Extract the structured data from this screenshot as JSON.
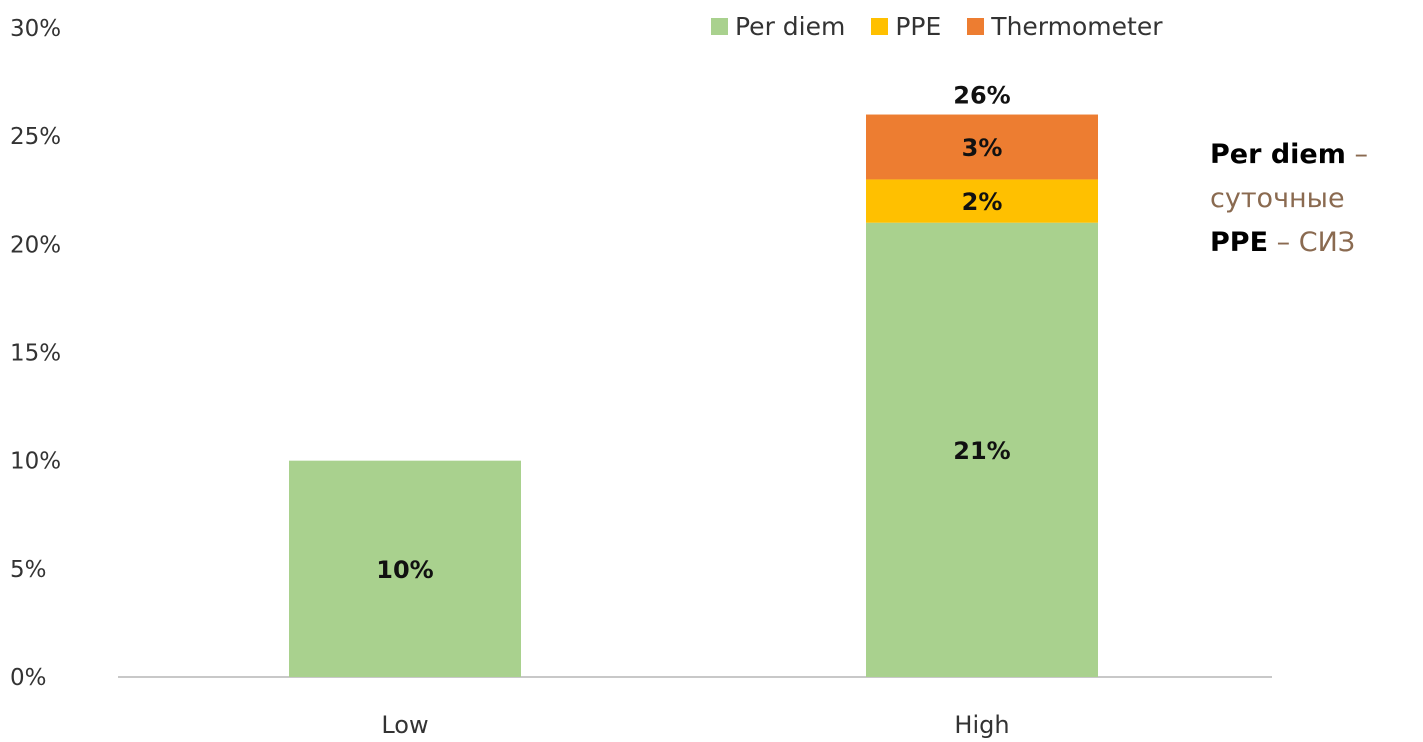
{
  "chart_data": {
    "type": "bar",
    "stacked": true,
    "categories": [
      "Low",
      "High"
    ],
    "series": [
      {
        "name": "Per diem",
        "color": "#a9d18e",
        "values": [
          10,
          21
        ],
        "labels": [
          "10%",
          "21%"
        ]
      },
      {
        "name": "PPE",
        "color": "#ffc000",
        "values": [
          0,
          2
        ],
        "labels": [
          "",
          "2%"
        ]
      },
      {
        "name": "Thermometer",
        "color": "#ed7d31",
        "values": [
          0,
          3
        ],
        "labels": [
          "",
          "3%"
        ]
      }
    ],
    "totals": [
      "",
      "26%"
    ],
    "total_values": [
      10,
      26
    ],
    "ylim": [
      0,
      30
    ],
    "yticks": [
      "0%",
      "5%",
      "10%",
      "15%",
      "20%",
      "25%",
      "30%"
    ],
    "ytick_values": [
      0,
      5,
      10,
      15,
      20,
      25,
      30
    ],
    "legend_position": "top-right",
    "grid": false
  },
  "glossary": [
    {
      "term": "Per diem",
      "dash": "–",
      "translation": "суточные"
    },
    {
      "term": "PPE",
      "dash": "–",
      "translation": "СИЗ"
    }
  ]
}
